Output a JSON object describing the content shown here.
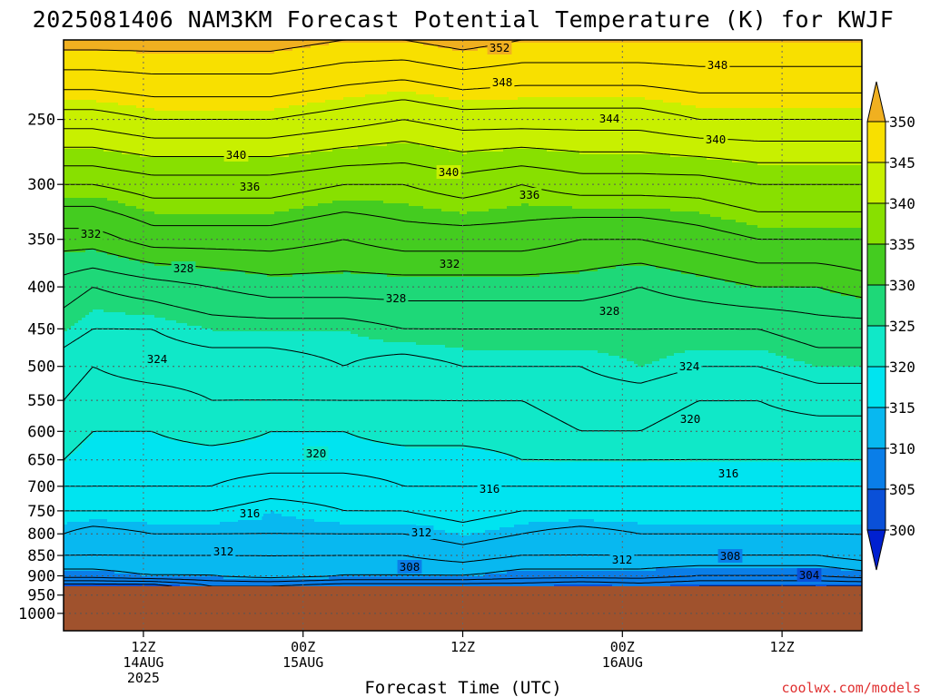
{
  "chart_data": {
    "type": "heatmap",
    "title": "2025081406 NAM3KM Forecast Potential Temperature (K) for KWJF",
    "xlabel": "Forecast Time (UTC)",
    "ylabel": "",
    "y_scale": "log-pressure",
    "y_ticks": [
      "250",
      "300",
      "350",
      "400",
      "450",
      "500",
      "550",
      "600",
      "650",
      "700",
      "750",
      "800",
      "850",
      "900",
      "950",
      "1000"
    ],
    "x_ticks": [
      {
        "time": "12Z",
        "day": "14AUG",
        "year": "2025"
      },
      {
        "time": "00Z",
        "day": "15AUG",
        "year": ""
      },
      {
        "time": "12Z",
        "day": "",
        "year": ""
      },
      {
        "time": "00Z",
        "day": "16AUG",
        "year": ""
      },
      {
        "time": "12Z",
        "day": "",
        "year": ""
      }
    ],
    "colorbar": {
      "ticks": [
        "350",
        "345",
        "340",
        "335",
        "330",
        "325",
        "320",
        "315",
        "310",
        "305",
        "300"
      ],
      "bands": [
        {
          "min": 350,
          "color": "#f0b020"
        },
        {
          "min": 345,
          "color": "#f8e000"
        },
        {
          "min": 340,
          "color": "#c8f000"
        },
        {
          "min": 335,
          "color": "#88e000"
        },
        {
          "min": 330,
          "color": "#44cc20"
        },
        {
          "min": 325,
          "color": "#1ed878"
        },
        {
          "min": 320,
          "color": "#10e8c8"
        },
        {
          "min": 315,
          "color": "#00e4f0"
        },
        {
          "min": 310,
          "color": "#08b8f0"
        },
        {
          "min": 305,
          "color": "#0a7ee8"
        },
        {
          "min": 300,
          "color": "#0a50d8"
        },
        {
          "min": 0,
          "color": "#0020d0"
        }
      ]
    },
    "contour_labels": [
      "352",
      "348",
      "348",
      "344",
      "340",
      "340",
      "340",
      "336",
      "336",
      "332",
      "332",
      "328",
      "328",
      "328",
      "324",
      "324",
      "320",
      "320",
      "316",
      "316",
      "316",
      "312",
      "312",
      "312",
      "308",
      "308",
      "304"
    ],
    "profiles": [
      {
        "x": 0,
        "levels": [
          [
            200,
            351
          ],
          [
            250,
            343
          ],
          [
            300,
            336
          ],
          [
            350,
            331
          ],
          [
            400,
            327
          ],
          [
            450,
            325
          ],
          [
            500,
            323
          ],
          [
            550,
            322
          ],
          [
            600,
            321
          ],
          [
            650,
            320
          ],
          [
            700,
            318
          ],
          [
            750,
            316
          ],
          [
            800,
            314
          ],
          [
            850,
            312
          ],
          [
            900,
            309
          ],
          [
            925,
            303
          ]
        ]
      },
      {
        "x": 2,
        "levels": [
          [
            200,
            351
          ],
          [
            250,
            343
          ],
          [
            300,
            336
          ],
          [
            350,
            331
          ],
          [
            400,
            326
          ],
          [
            450,
            324
          ],
          [
            500,
            322
          ],
          [
            550,
            321
          ],
          [
            600,
            320
          ],
          [
            650,
            319
          ],
          [
            700,
            318
          ],
          [
            750,
            316
          ],
          [
            800,
            313
          ],
          [
            850,
            312
          ],
          [
            900,
            309
          ],
          [
            925,
            303
          ]
        ]
      },
      {
        "x": 6,
        "levels": [
          [
            200,
            351
          ],
          [
            250,
            344
          ],
          [
            300,
            337
          ],
          [
            350,
            333
          ],
          [
            400,
            327
          ],
          [
            450,
            324
          ],
          [
            500,
            323
          ],
          [
            550,
            321
          ],
          [
            600,
            320
          ],
          [
            650,
            319
          ],
          [
            700,
            318
          ],
          [
            750,
            316
          ],
          [
            800,
            314
          ],
          [
            850,
            312
          ],
          [
            900,
            310
          ],
          [
            925,
            303
          ]
        ]
      },
      {
        "x": 10,
        "levels": [
          [
            200,
            351
          ],
          [
            250,
            344
          ],
          [
            300,
            337
          ],
          [
            350,
            333
          ],
          [
            400,
            328
          ],
          [
            450,
            325
          ],
          [
            500,
            323
          ],
          [
            550,
            322
          ],
          [
            600,
            321
          ],
          [
            650,
            319
          ],
          [
            700,
            318
          ],
          [
            750,
            316
          ],
          [
            800,
            314
          ],
          [
            850,
            312
          ],
          [
            900,
            310
          ],
          [
            925,
            306
          ]
        ]
      },
      {
        "x": 14,
        "levels": [
          [
            200,
            351
          ],
          [
            250,
            344
          ],
          [
            300,
            337
          ],
          [
            350,
            333
          ],
          [
            400,
            329
          ],
          [
            450,
            325
          ],
          [
            500,
            323
          ],
          [
            550,
            322
          ],
          [
            600,
            320
          ],
          [
            650,
            319
          ],
          [
            700,
            317
          ],
          [
            750,
            315
          ],
          [
            800,
            314
          ],
          [
            850,
            312
          ],
          [
            900,
            311
          ],
          [
            925,
            306
          ]
        ]
      },
      {
        "x": 19,
        "levels": [
          [
            200,
            350
          ],
          [
            250,
            343
          ],
          [
            300,
            336
          ],
          [
            350,
            332
          ],
          [
            400,
            329
          ],
          [
            450,
            325
          ],
          [
            500,
            324
          ],
          [
            550,
            322
          ],
          [
            600,
            320
          ],
          [
            650,
            319
          ],
          [
            700,
            317
          ],
          [
            750,
            316
          ],
          [
            800,
            314
          ],
          [
            850,
            312
          ],
          [
            900,
            310
          ],
          [
            925,
            305
          ]
        ]
      },
      {
        "x": 23,
        "levels": [
          [
            200,
            350
          ],
          [
            250,
            342
          ],
          [
            300,
            336
          ],
          [
            350,
            333
          ],
          [
            400,
            329
          ],
          [
            450,
            326
          ],
          [
            500,
            323
          ],
          [
            550,
            322
          ],
          [
            600,
            321
          ],
          [
            650,
            319
          ],
          [
            700,
            318
          ],
          [
            750,
            316
          ],
          [
            800,
            314
          ],
          [
            850,
            312
          ],
          [
            900,
            310
          ],
          [
            925,
            305
          ]
        ]
      },
      {
        "x": 27,
        "levels": [
          [
            200,
            351
          ],
          [
            250,
            343
          ],
          [
            300,
            337
          ],
          [
            350,
            333
          ],
          [
            400,
            329
          ],
          [
            450,
            326
          ],
          [
            500,
            324
          ],
          [
            550,
            322
          ],
          [
            600,
            321
          ],
          [
            650,
            319
          ],
          [
            700,
            318
          ],
          [
            750,
            317
          ],
          [
            800,
            315
          ],
          [
            850,
            313
          ],
          [
            900,
            310
          ],
          [
            925,
            305
          ]
        ]
      },
      {
        "x": 31,
        "levels": [
          [
            200,
            350
          ],
          [
            250,
            343
          ],
          [
            300,
            336
          ],
          [
            350,
            333
          ],
          [
            400,
            329
          ],
          [
            450,
            326
          ],
          [
            500,
            324
          ],
          [
            550,
            322
          ],
          [
            600,
            321
          ],
          [
            650,
            320
          ],
          [
            700,
            318
          ],
          [
            750,
            316
          ],
          [
            800,
            314
          ],
          [
            850,
            312
          ],
          [
            900,
            309
          ],
          [
            925,
            305
          ]
        ]
      },
      {
        "x": 35,
        "levels": [
          [
            200,
            350
          ],
          [
            250,
            343
          ],
          [
            300,
            337
          ],
          [
            350,
            332
          ],
          [
            400,
            329
          ],
          [
            450,
            326
          ],
          [
            500,
            324
          ],
          [
            550,
            323
          ],
          [
            600,
            322
          ],
          [
            650,
            320
          ],
          [
            700,
            318
          ],
          [
            750,
            316
          ],
          [
            800,
            313
          ],
          [
            850,
            312
          ],
          [
            900,
            309
          ],
          [
            925,
            304
          ]
        ]
      },
      {
        "x": 39,
        "levels": [
          [
            200,
            350
          ],
          [
            250,
            343
          ],
          [
            300,
            337
          ],
          [
            350,
            332
          ],
          [
            400,
            328
          ],
          [
            450,
            326
          ],
          [
            500,
            325
          ],
          [
            550,
            323
          ],
          [
            600,
            322
          ],
          [
            650,
            320
          ],
          [
            700,
            318
          ],
          [
            750,
            316
          ],
          [
            800,
            314
          ],
          [
            850,
            312
          ],
          [
            900,
            309
          ],
          [
            925,
            305
          ]
        ]
      },
      {
        "x": 43,
        "levels": [
          [
            200,
            350
          ],
          [
            250,
            344
          ],
          [
            300,
            337
          ],
          [
            350,
            333
          ],
          [
            400,
            329
          ],
          [
            450,
            326
          ],
          [
            500,
            324
          ],
          [
            550,
            322
          ],
          [
            600,
            321
          ],
          [
            650,
            320
          ],
          [
            700,
            318
          ],
          [
            750,
            316
          ],
          [
            800,
            314
          ],
          [
            850,
            312
          ],
          [
            900,
            308
          ],
          [
            925,
            304
          ]
        ]
      },
      {
        "x": 47,
        "levels": [
          [
            200,
            350
          ],
          [
            250,
            344
          ],
          [
            300,
            338
          ],
          [
            350,
            334
          ],
          [
            400,
            330
          ],
          [
            450,
            326
          ],
          [
            500,
            324
          ],
          [
            550,
            322
          ],
          [
            600,
            321
          ],
          [
            650,
            320
          ],
          [
            700,
            318
          ],
          [
            750,
            316
          ],
          [
            800,
            314
          ],
          [
            850,
            312
          ],
          [
            900,
            308
          ],
          [
            925,
            304
          ]
        ]
      },
      {
        "x": 51,
        "levels": [
          [
            200,
            350
          ],
          [
            250,
            344
          ],
          [
            300,
            338
          ],
          [
            350,
            334
          ],
          [
            400,
            330
          ],
          [
            450,
            327
          ],
          [
            500,
            325
          ],
          [
            550,
            323
          ],
          [
            600,
            321
          ],
          [
            650,
            320
          ],
          [
            700,
            318
          ],
          [
            750,
            316
          ],
          [
            800,
            314
          ],
          [
            850,
            312
          ],
          [
            900,
            308
          ],
          [
            925,
            304
          ]
        ]
      },
      {
        "x": 54,
        "levels": [
          [
            200,
            350
          ],
          [
            250,
            344
          ],
          [
            300,
            338
          ],
          [
            350,
            334
          ],
          [
            400,
            331
          ],
          [
            450,
            327
          ],
          [
            500,
            325
          ],
          [
            550,
            323
          ],
          [
            600,
            321
          ],
          [
            650,
            320
          ],
          [
            700,
            318
          ],
          [
            750,
            316
          ],
          [
            800,
            314
          ],
          [
            850,
            313
          ],
          [
            900,
            309
          ],
          [
            925,
            304
          ]
        ]
      }
    ]
  },
  "footer": {
    "credit": "coolwx.com/models"
  }
}
